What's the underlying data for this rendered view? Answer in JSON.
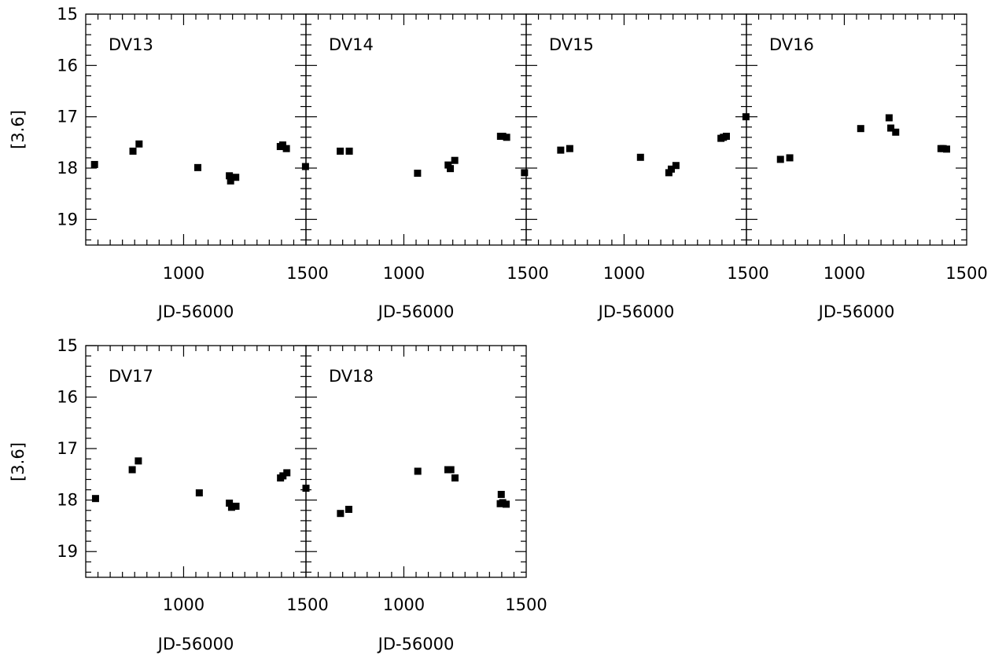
{
  "chart_data": {
    "type": "scatter",
    "xlabel": "JD-56000",
    "ylabel": "[3.6]",
    "xlim": [
      600,
      1500
    ],
    "ylim": [
      19.5,
      15
    ],
    "y_inverted": true,
    "x_ticks": [
      "1000",
      "1500"
    ],
    "y_ticks": [
      "15",
      "16",
      "17",
      "18",
      "19"
    ],
    "panels": [
      {
        "label": "DV13",
        "points": [
          [
            636,
            17.93
          ],
          [
            793,
            17.67
          ],
          [
            818,
            17.53
          ],
          [
            1058,
            17.99
          ],
          [
            1187,
            18.15
          ],
          [
            1192,
            18.25
          ],
          [
            1213,
            18.18
          ],
          [
            1395,
            17.58
          ],
          [
            1405,
            17.55
          ],
          [
            1420,
            17.62
          ]
        ]
      },
      {
        "label": "DV14",
        "points": [
          [
            598,
            17.97
          ],
          [
            740,
            17.67
          ],
          [
            777,
            17.67
          ],
          [
            1056,
            18.1
          ],
          [
            1181,
            17.94
          ],
          [
            1190,
            18.01
          ],
          [
            1208,
            17.85
          ],
          [
            1395,
            17.38
          ],
          [
            1404,
            17.38
          ],
          [
            1420,
            17.4
          ]
        ]
      },
      {
        "label": "DV15",
        "points": [
          [
            593,
            18.09
          ],
          [
            741,
            17.65
          ],
          [
            778,
            17.62
          ],
          [
            1067,
            17.79
          ],
          [
            1183,
            18.09
          ],
          [
            1193,
            18.02
          ],
          [
            1212,
            17.95
          ],
          [
            1396,
            17.42
          ],
          [
            1406,
            17.4
          ],
          [
            1418,
            17.38
          ]
        ]
      },
      {
        "label": "DV16",
        "points": [
          [
            598,
            17.0
          ],
          [
            739,
            17.83
          ],
          [
            777,
            17.8
          ],
          [
            1067,
            17.23
          ],
          [
            1183,
            17.02
          ],
          [
            1190,
            17.22
          ],
          [
            1210,
            17.3
          ],
          [
            1395,
            17.62
          ],
          [
            1404,
            17.62
          ],
          [
            1418,
            17.63
          ]
        ]
      },
      {
        "label": "DV17",
        "points": [
          [
            640,
            17.97
          ],
          [
            790,
            17.41
          ],
          [
            815,
            17.24
          ],
          [
            1064,
            17.86
          ],
          [
            1187,
            18.06
          ],
          [
            1196,
            18.14
          ],
          [
            1214,
            18.12
          ],
          [
            1396,
            17.57
          ],
          [
            1406,
            17.53
          ],
          [
            1422,
            17.47
          ]
        ]
      },
      {
        "label": "DV18",
        "points": [
          [
            600,
            17.77
          ],
          [
            741,
            18.26
          ],
          [
            775,
            18.18
          ],
          [
            1057,
            17.44
          ],
          [
            1180,
            17.41
          ],
          [
            1192,
            17.41
          ],
          [
            1209,
            17.57
          ],
          [
            1394,
            18.07
          ],
          [
            1398,
            17.89
          ],
          [
            1404,
            18.05
          ],
          [
            1418,
            18.08
          ]
        ]
      }
    ]
  }
}
